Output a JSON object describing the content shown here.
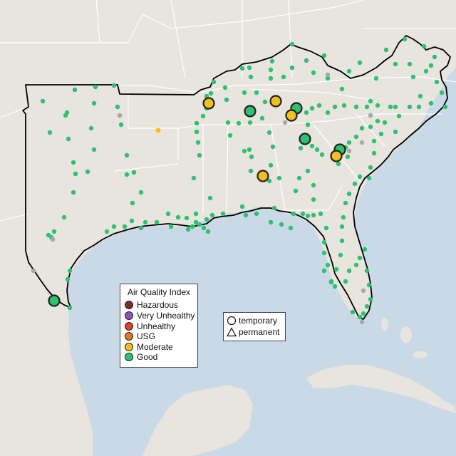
{
  "map": {
    "colors": {
      "water": "#c9d9e6",
      "land": "#e8e4de",
      "state_border": "#ffffff",
      "region_border": "#000000",
      "ocean_label": "#aebfcc"
    }
  },
  "legend_aqi": {
    "title": "Air Quality Index",
    "items": [
      {
        "label": "Hazardous",
        "color": "#7e2b2b"
      },
      {
        "label": "Very Unhealthy",
        "color": "#8e4fc0"
      },
      {
        "label": "Unhealthy",
        "color": "#e0402f"
      },
      {
        "label": "USG",
        "color": "#e07a1c"
      },
      {
        "label": "Moderate",
        "color": "#f2c01c"
      },
      {
        "label": "Good",
        "color": "#2dc26e"
      }
    ]
  },
  "legend_type": {
    "items": [
      {
        "label": "temporary",
        "shape": "circle"
      },
      {
        "label": "permanent",
        "shape": "triangle"
      }
    ]
  }
}
